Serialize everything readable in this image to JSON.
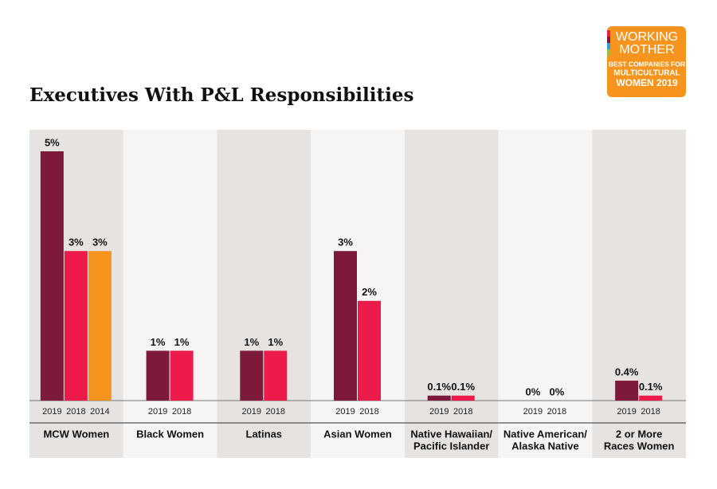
{
  "chart_data": {
    "type": "grouped-bar",
    "title": "Executives With P&L Responsibilities",
    "logo": {
      "lines": [
        "WORKING",
        "MOTHER",
        "BEST COMPANIES FOR",
        "MULTICULTURAL",
        "WOMEN 2019"
      ]
    },
    "bar_colors": [
      "#7d1a3a",
      "#ec1b4b",
      "#f7941d"
    ],
    "groups": [
      {
        "name": [
          "MCW Women"
        ],
        "years": [
          "2019",
          "2018",
          "2014"
        ],
        "values": [
          5,
          3,
          3
        ],
        "value_labels": [
          "5%",
          "3%",
          "3%"
        ]
      },
      {
        "name": [
          "Black Women"
        ],
        "years": [
          "2019",
          "2018"
        ],
        "values": [
          1,
          1
        ],
        "value_labels": [
          "1%",
          "1%"
        ]
      },
      {
        "name": [
          "Latinas"
        ],
        "years": [
          "2019",
          "2018"
        ],
        "values": [
          1,
          1
        ],
        "value_labels": [
          "1%",
          "1%"
        ]
      },
      {
        "name": [
          "Asian Women"
        ],
        "years": [
          "2019",
          "2018"
        ],
        "values": [
          3,
          2
        ],
        "value_labels": [
          "3%",
          "2%"
        ]
      },
      {
        "name": [
          "Native Hawaiian/",
          "Pacific Islander"
        ],
        "years": [
          "2019",
          "2018"
        ],
        "values": [
          0.1,
          0.1
        ],
        "value_labels": [
          "0.1%",
          "0.1%"
        ]
      },
      {
        "name": [
          "Native American/",
          "Alaska Native"
        ],
        "years": [
          "2019",
          "2018"
        ],
        "values": [
          0,
          0
        ],
        "value_labels": [
          "0%",
          "0%"
        ]
      },
      {
        "name": [
          "2 or More",
          "Races Women"
        ],
        "years": [
          "2019",
          "2018"
        ],
        "values": [
          0.4,
          0.1
        ],
        "value_labels": [
          "0.4%",
          "0.1%"
        ]
      }
    ]
  }
}
